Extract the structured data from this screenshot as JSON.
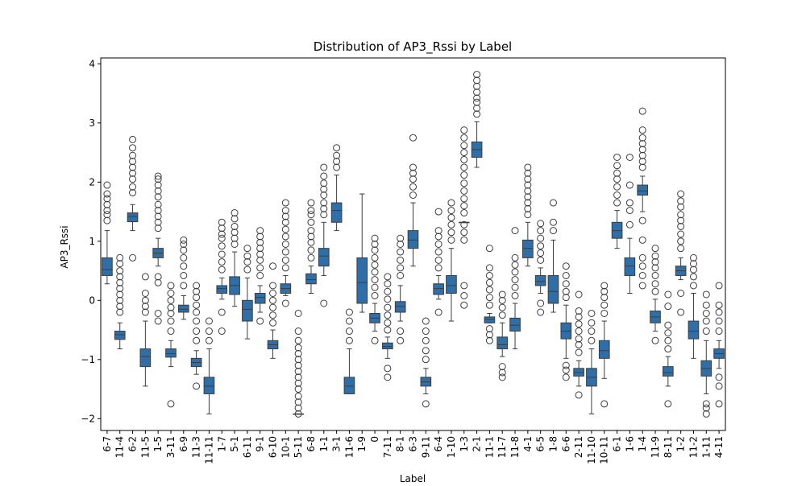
{
  "chart_data": {
    "type": "box",
    "title": "Distribution of AP3_Rssi by Label",
    "xlabel": "Label",
    "ylabel": "AP3_Rssi",
    "ylim": [
      -2.2,
      4.1
    ],
    "yticks": [
      -2,
      -1,
      0,
      1,
      2,
      3,
      4
    ],
    "grid": false,
    "color": "#2f6ea6",
    "categories": [
      "6-7",
      "11-4",
      "6-2",
      "11-5",
      "1-5",
      "3-11",
      "6-9",
      "11-3",
      "11-11",
      "1-7",
      "5-1",
      "6-11",
      "9-1",
      "6-10",
      "10-1",
      "5-11",
      "6-8",
      "1-1",
      "3-1",
      "11-6",
      "1-9",
      "0",
      "7-11",
      "8-1",
      "6-3",
      "9-11",
      "6-4",
      "1-10",
      "1-3",
      "2-1",
      "11-1",
      "11-7",
      "11-8",
      "4-1",
      "6-5",
      "1-8",
      "6-6",
      "2-11",
      "11-10",
      "10-11",
      "6-1",
      "1-6",
      "1-4",
      "11-9",
      "8-11",
      "1-2",
      "11-2",
      "1-11",
      "4-11"
    ],
    "boxes": [
      {
        "label": "6-7",
        "whislo": 0.28,
        "q1": 0.42,
        "med": 0.52,
        "q3": 0.72,
        "whishi": 1.18,
        "fliers": [
          1.35,
          1.45,
          1.52,
          1.62,
          1.72,
          1.8,
          1.95
        ]
      },
      {
        "label": "11-4",
        "whislo": -0.82,
        "q1": -0.66,
        "med": -0.58,
        "q3": -0.52,
        "whishi": -0.38,
        "fliers": [
          -0.2,
          -0.1,
          0.0,
          0.1,
          0.2,
          0.3,
          0.4,
          0.5,
          0.62,
          0.72
        ]
      },
      {
        "label": "6-2",
        "whislo": 1.18,
        "q1": 1.33,
        "med": 1.42,
        "q3": 1.48,
        "whishi": 1.62,
        "fliers": [
          0.72,
          1.82,
          1.92,
          2.05,
          2.15,
          2.25,
          2.35,
          2.45,
          2.58,
          2.72
        ]
      },
      {
        "label": "11-5",
        "whislo": -1.45,
        "q1": -1.12,
        "med": -0.95,
        "q3": -0.82,
        "whishi": -0.35,
        "fliers": [
          -0.2,
          -0.1,
          0.0,
          0.12,
          0.4
        ]
      },
      {
        "label": "1-5",
        "whislo": 0.58,
        "q1": 0.72,
        "med": 0.8,
        "q3": 0.88,
        "whishi": 1.05,
        "fliers": [
          -0.35,
          -0.22,
          0.3,
          0.4,
          1.22,
          1.32,
          1.42,
          1.52,
          1.62,
          1.75,
          1.85,
          1.95,
          2.05,
          2.1
        ]
      },
      {
        "label": "3-11",
        "whislo": -1.12,
        "q1": -0.96,
        "med": -0.9,
        "q3": -0.82,
        "whishi": -0.68,
        "fliers": [
          -1.75,
          -0.52,
          -0.35,
          -0.22,
          -0.12,
          0.0,
          0.12,
          0.25
        ]
      },
      {
        "label": "6-9",
        "whislo": -0.32,
        "q1": -0.2,
        "med": -0.15,
        "q3": -0.08,
        "whishi": 0.08,
        "fliers": [
          0.25,
          0.42,
          0.58,
          0.72,
          0.85,
          0.95,
          1.02
        ]
      },
      {
        "label": "11-3",
        "whislo": -1.25,
        "q1": -1.12,
        "med": -1.05,
        "q3": -0.98,
        "whishi": -0.85,
        "fliers": [
          -1.45,
          -0.68,
          -0.52,
          -0.35,
          -0.2,
          -0.08,
          0.05,
          0.15,
          0.25
        ]
      },
      {
        "label": "11-11",
        "whislo": -1.92,
        "q1": -1.58,
        "med": -1.45,
        "q3": -1.3,
        "whishi": -0.82,
        "fliers": [
          -0.68,
          -0.52,
          -0.35
        ]
      },
      {
        "label": "1-7",
        "whislo": 0.02,
        "q1": 0.12,
        "med": 0.2,
        "q3": 0.25,
        "whishi": 0.38,
        "fliers": [
          -0.52,
          -0.2,
          0.52,
          0.65,
          0.78,
          0.92,
          1.05,
          1.12,
          1.22,
          1.32
        ]
      },
      {
        "label": "5-1",
        "whislo": -0.1,
        "q1": 0.1,
        "med": 0.25,
        "q3": 0.4,
        "whishi": 0.82,
        "fliers": [
          0.95,
          1.05,
          1.15,
          1.25,
          1.38,
          1.48
        ]
      },
      {
        "label": "6-11",
        "whislo": -0.65,
        "q1": -0.35,
        "med": -0.15,
        "q3": 0.0,
        "whishi": 0.38,
        "fliers": [
          0.52,
          0.65,
          0.75,
          0.88
        ]
      },
      {
        "label": "9-1",
        "whislo": -0.2,
        "q1": -0.05,
        "med": 0.05,
        "q3": 0.12,
        "whishi": 0.25,
        "fliers": [
          -0.35,
          0.42,
          0.55,
          0.68,
          0.78,
          0.88,
          0.98,
          1.08,
          1.18
        ]
      },
      {
        "label": "6-10",
        "whislo": -0.98,
        "q1": -0.82,
        "med": -0.75,
        "q3": -0.68,
        "whishi": -0.5,
        "fliers": [
          -0.38,
          -0.25,
          -0.12,
          0.0,
          0.12,
          0.25,
          0.58
        ]
      },
      {
        "label": "10-1",
        "whislo": 0.08,
        "q1": 0.12,
        "med": 0.2,
        "q3": 0.28,
        "whishi": 0.42,
        "fliers": [
          -0.05,
          0.55,
          0.68,
          0.82,
          0.95,
          1.08,
          1.2,
          1.32,
          1.42,
          1.52,
          1.65
        ]
      },
      {
        "label": "5-11",
        "whislo": -1.92,
        "q1": -1.92,
        "med": -1.92,
        "q3": -1.92,
        "whishi": -1.92,
        "fliers": [
          -1.92,
          -1.82,
          -1.72,
          -1.62,
          -1.5,
          -1.4,
          -1.3,
          -1.2,
          -1.1,
          -1.0,
          -0.9,
          -0.8,
          -0.68,
          -0.52,
          -0.22
        ]
      },
      {
        "label": "6-8",
        "whislo": 0.12,
        "q1": 0.28,
        "med": 0.35,
        "q3": 0.45,
        "whishi": 0.58,
        "fliers": [
          0.72,
          0.85,
          0.98,
          1.08,
          1.18,
          1.32,
          1.45,
          1.52,
          1.65
        ]
      },
      {
        "label": "1-1",
        "whislo": 0.42,
        "q1": 0.58,
        "med": 0.75,
        "q3": 0.88,
        "whishi": 1.32,
        "fliers": [
          -0.05,
          1.45,
          1.55,
          1.65,
          1.78,
          1.88,
          1.98,
          2.1,
          2.25
        ]
      },
      {
        "label": "3-1",
        "whislo": 1.18,
        "q1": 1.32,
        "med": 1.52,
        "q3": 1.65,
        "whishi": 2.12,
        "fliers": [
          2.25,
          2.35,
          2.45,
          2.58
        ]
      },
      {
        "label": "11-6",
        "whislo": -1.58,
        "q1": -1.58,
        "med": -1.45,
        "q3": -1.3,
        "whishi": -0.82,
        "fliers": [
          -0.68,
          -0.52,
          -0.35,
          -0.2
        ]
      },
      {
        "label": "1-9",
        "whislo": -0.2,
        "q1": -0.05,
        "med": 0.3,
        "q3": 0.72,
        "whishi": 1.8,
        "fliers": []
      },
      {
        "label": "0",
        "whislo": -0.52,
        "q1": -0.38,
        "med": -0.3,
        "q3": -0.22,
        "whishi": -0.05,
        "fliers": [
          -0.68,
          0.08,
          0.22,
          0.35,
          0.48,
          0.6,
          0.72,
          0.85,
          0.95,
          1.05
        ]
      },
      {
        "label": "7-11",
        "whislo": -0.98,
        "q1": -0.82,
        "med": -0.78,
        "q3": -0.72,
        "whishi": -0.62,
        "fliers": [
          -1.3,
          -1.15,
          -0.5,
          -0.38,
          -0.25,
          -0.12,
          0.02,
          0.15,
          0.28,
          0.4
        ]
      },
      {
        "label": "8-1",
        "whislo": -0.35,
        "q1": -0.2,
        "med": -0.1,
        "q3": -0.02,
        "whishi": 0.25,
        "fliers": [
          -0.68,
          -0.52,
          0.42,
          0.55,
          0.68,
          0.82,
          0.95,
          1.05
        ]
      },
      {
        "label": "6-3",
        "whislo": 0.58,
        "q1": 0.88,
        "med": 1.02,
        "q3": 1.18,
        "whishi": 1.65,
        "fliers": [
          1.78,
          1.92,
          2.05,
          2.15,
          2.25,
          2.75
        ]
      },
      {
        "label": "9-11",
        "whislo": -1.58,
        "q1": -1.45,
        "med": -1.38,
        "q3": -1.3,
        "whishi": -1.15,
        "fliers": [
          -1.75,
          -1.0,
          -0.85,
          -0.68,
          -0.52,
          -0.35
        ]
      },
      {
        "label": "6-4",
        "whislo": 0.02,
        "q1": 0.1,
        "med": 0.2,
        "q3": 0.28,
        "whishi": 0.42,
        "fliers": [
          -0.2,
          0.55,
          0.68,
          0.82,
          0.95,
          1.08,
          1.18,
          1.5
        ]
      },
      {
        "label": "1-10",
        "whislo": -0.35,
        "q1": 0.12,
        "med": 0.25,
        "q3": 0.42,
        "whishi": 0.88,
        "fliers": [
          1.02,
          1.15,
          1.28,
          1.4,
          1.52,
          1.65
        ]
      },
      {
        "label": "1-3",
        "whislo": 1.32,
        "q1": 1.32,
        "med": 1.32,
        "q3": 1.32,
        "whishi": 1.32,
        "fliers": [
          -0.08,
          0.08,
          0.25,
          1.02,
          1.15,
          1.28,
          1.48,
          1.6,
          1.72,
          1.85,
          1.98,
          2.12,
          2.25,
          2.38,
          2.5,
          2.62,
          2.75,
          2.88
        ]
      },
      {
        "label": "2-1",
        "whislo": 2.25,
        "q1": 2.42,
        "med": 2.55,
        "q3": 2.68,
        "whishi": 3.02,
        "fliers": [
          3.15,
          3.25,
          3.35,
          3.42,
          3.52,
          3.62,
          3.72,
          3.82
        ]
      },
      {
        "label": "11-1",
        "whislo": -0.38,
        "q1": -0.38,
        "med": -0.32,
        "q3": -0.28,
        "whishi": -0.22,
        "fliers": [
          -0.68,
          -0.58,
          -0.48,
          -0.08,
          0.05,
          0.18,
          0.3,
          0.42,
          0.55,
          0.88
        ]
      },
      {
        "label": "11-7",
        "whislo": -0.95,
        "q1": -0.82,
        "med": -0.75,
        "q3": -0.62,
        "whishi": -0.38,
        "fliers": [
          -1.3,
          -1.22,
          -1.12,
          -0.25,
          -0.12,
          0.0,
          0.1
        ]
      },
      {
        "label": "11-8",
        "whislo": -0.82,
        "q1": -0.52,
        "med": -0.42,
        "q3": -0.3,
        "whishi": -0.05,
        "fliers": [
          0.08,
          0.22,
          0.35,
          0.48,
          0.6,
          0.72,
          1.18
        ]
      },
      {
        "label": "4-1",
        "whislo": 0.58,
        "q1": 0.72,
        "med": 0.88,
        "q3": 1.02,
        "whishi": 1.32,
        "fliers": [
          1.45,
          1.55,
          1.65,
          1.75,
          1.85,
          1.95,
          2.05,
          2.15,
          2.25
        ]
      },
      {
        "label": "6-5",
        "whislo": 0.12,
        "q1": 0.25,
        "med": 0.32,
        "q3": 0.42,
        "whishi": 0.55,
        "fliers": [
          -0.2,
          -0.05,
          0.68,
          0.8,
          0.92,
          1.05,
          1.18,
          1.3
        ]
      },
      {
        "label": "1-8",
        "whislo": -0.2,
        "q1": -0.05,
        "med": 0.15,
        "q3": 0.42,
        "whishi": 1.02,
        "fliers": [
          1.18,
          1.32,
          1.65
        ]
      },
      {
        "label": "6-6",
        "whislo": -0.98,
        "q1": -0.65,
        "med": -0.52,
        "q3": -0.38,
        "whishi": -0.08,
        "fliers": [
          -1.3,
          -1.18,
          -1.1,
          0.05,
          0.15,
          0.28,
          0.42,
          0.58
        ]
      },
      {
        "label": "2-11",
        "whislo": -1.45,
        "q1": -1.28,
        "med": -1.22,
        "q3": -1.15,
        "whishi": -1.02,
        "fliers": [
          -1.6,
          -0.88,
          -0.75,
          -0.65,
          -0.52,
          -0.4,
          -0.28,
          -0.18,
          0.1
        ]
      },
      {
        "label": "11-10",
        "whislo": -1.92,
        "q1": -1.45,
        "med": -1.3,
        "q3": -1.15,
        "whishi": -0.82,
        "fliers": [
          -0.68,
          -0.52,
          -0.38,
          -0.22
        ]
      },
      {
        "label": "10-11",
        "whislo": -1.32,
        "q1": -0.98,
        "med": -0.85,
        "q3": -0.68,
        "whishi": -0.35,
        "fliers": [
          -1.75,
          -0.22,
          -0.08,
          0.05,
          0.15,
          0.25
        ]
      },
      {
        "label": "6-1",
        "whislo": 0.88,
        "q1": 1.05,
        "med": 1.18,
        "q3": 1.32,
        "whishi": 1.52,
        "fliers": [
          1.65,
          1.78,
          1.92,
          2.05,
          2.15,
          2.28,
          2.42
        ]
      },
      {
        "label": "1-6",
        "whislo": 0.12,
        "q1": 0.42,
        "med": 0.58,
        "q3": 0.72,
        "whishi": 1.05,
        "fliers": [
          1.28,
          1.52,
          1.65,
          1.95,
          2.42
        ]
      },
      {
        "label": "1-4",
        "whislo": 1.5,
        "q1": 1.78,
        "med": 1.85,
        "q3": 1.95,
        "whishi": 2.1,
        "fliers": [
          0.25,
          0.42,
          0.58,
          0.72,
          1.02,
          1.35,
          2.25,
          2.35,
          2.45,
          2.55,
          2.65,
          2.75,
          2.88,
          3.2
        ]
      },
      {
        "label": "11-9",
        "whislo": -0.52,
        "q1": -0.38,
        "med": -0.28,
        "q3": -0.18,
        "whishi": 0.02,
        "fliers": [
          -0.68,
          0.15,
          0.28,
          0.42,
          0.55,
          0.65,
          0.75,
          0.88
        ]
      },
      {
        "label": "8-11",
        "whislo": -1.45,
        "q1": -1.28,
        "med": -1.22,
        "q3": -1.12,
        "whishi": -0.95,
        "fliers": [
          -1.75,
          -0.82,
          -0.68,
          -0.55,
          -0.42,
          -0.1,
          0.1
        ]
      },
      {
        "label": "1-2",
        "whislo": 0.35,
        "q1": 0.42,
        "med": 0.5,
        "q3": 0.58,
        "whishi": 0.72,
        "fliers": [
          -0.2,
          0.12,
          0.88,
          1.0,
          1.12,
          1.25,
          1.35,
          1.45,
          1.58,
          1.68,
          1.8
        ]
      },
      {
        "label": "11-2",
        "whislo": -0.98,
        "q1": -0.65,
        "med": -0.52,
        "q3": -0.35,
        "whishi": 0.12,
        "fliers": [
          0.25,
          0.4,
          0.52,
          0.62,
          0.72
        ]
      },
      {
        "label": "1-11",
        "whislo": -1.58,
        "q1": -1.28,
        "med": -1.15,
        "q3": -1.02,
        "whishi": -0.68,
        "fliers": [
          -1.92,
          -1.82,
          -1.75,
          -0.52,
          -0.35,
          -0.22,
          -0.08,
          0.1
        ]
      },
      {
        "label": "4-11",
        "whislo": -1.15,
        "q1": -0.98,
        "med": -0.9,
        "q3": -0.82,
        "whishi": -0.68,
        "fliers": [
          -1.75,
          -1.45,
          -1.3,
          -0.52,
          -0.35,
          -0.2,
          -0.08,
          0.25
        ]
      }
    ]
  }
}
